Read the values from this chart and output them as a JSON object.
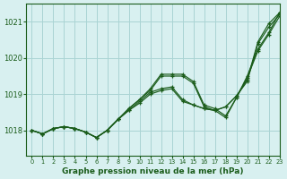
{
  "xlabel": "Graphe pression niveau de la mer (hPa)",
  "bg_color": "#d8f0f0",
  "grid_color": "#aad4d4",
  "line_color": "#1a5c1a",
  "xlim": [
    -0.5,
    23
  ],
  "ylim": [
    1017.3,
    1021.5
  ],
  "yticks": [
    1018,
    1019,
    1020,
    1021
  ],
  "xticks": [
    0,
    1,
    2,
    3,
    4,
    5,
    6,
    7,
    8,
    9,
    10,
    11,
    12,
    13,
    14,
    15,
    16,
    17,
    18,
    19,
    20,
    21,
    22,
    23
  ],
  "series": [
    [
      1018.0,
      1017.9,
      1018.05,
      1018.1,
      1018.05,
      1017.95,
      1017.8,
      1018.0,
      1018.3,
      1018.55,
      1018.75,
      1019.0,
      1019.1,
      1019.15,
      1018.8,
      1018.7,
      1018.6,
      1018.55,
      1018.65,
      1018.95,
      1019.4,
      1020.45,
      1020.95,
      1021.25
    ],
    [
      1018.0,
      1017.9,
      1018.05,
      1018.1,
      1018.05,
      1017.95,
      1017.8,
      1018.0,
      1018.3,
      1018.6,
      1018.85,
      1019.15,
      1019.55,
      1019.55,
      1019.55,
      1019.35,
      1018.7,
      1018.6,
      1018.4,
      1018.9,
      1019.5,
      1020.25,
      1020.7,
      1021.25
    ],
    [
      1018.0,
      1017.9,
      1018.05,
      1018.1,
      1018.05,
      1017.95,
      1017.8,
      1018.0,
      1018.3,
      1018.55,
      1018.8,
      1019.05,
      1019.15,
      1019.2,
      1018.85,
      1018.7,
      1018.6,
      1018.55,
      1018.65,
      1018.95,
      1019.35,
      1020.4,
      1020.85,
      1021.2
    ],
    [
      1018.0,
      1017.9,
      1018.05,
      1018.1,
      1018.05,
      1017.95,
      1017.8,
      1018.0,
      1018.3,
      1018.6,
      1018.85,
      1019.1,
      1019.5,
      1019.5,
      1019.5,
      1019.3,
      1018.65,
      1018.55,
      1018.35,
      1018.9,
      1019.45,
      1020.2,
      1020.65,
      1021.15
    ]
  ]
}
